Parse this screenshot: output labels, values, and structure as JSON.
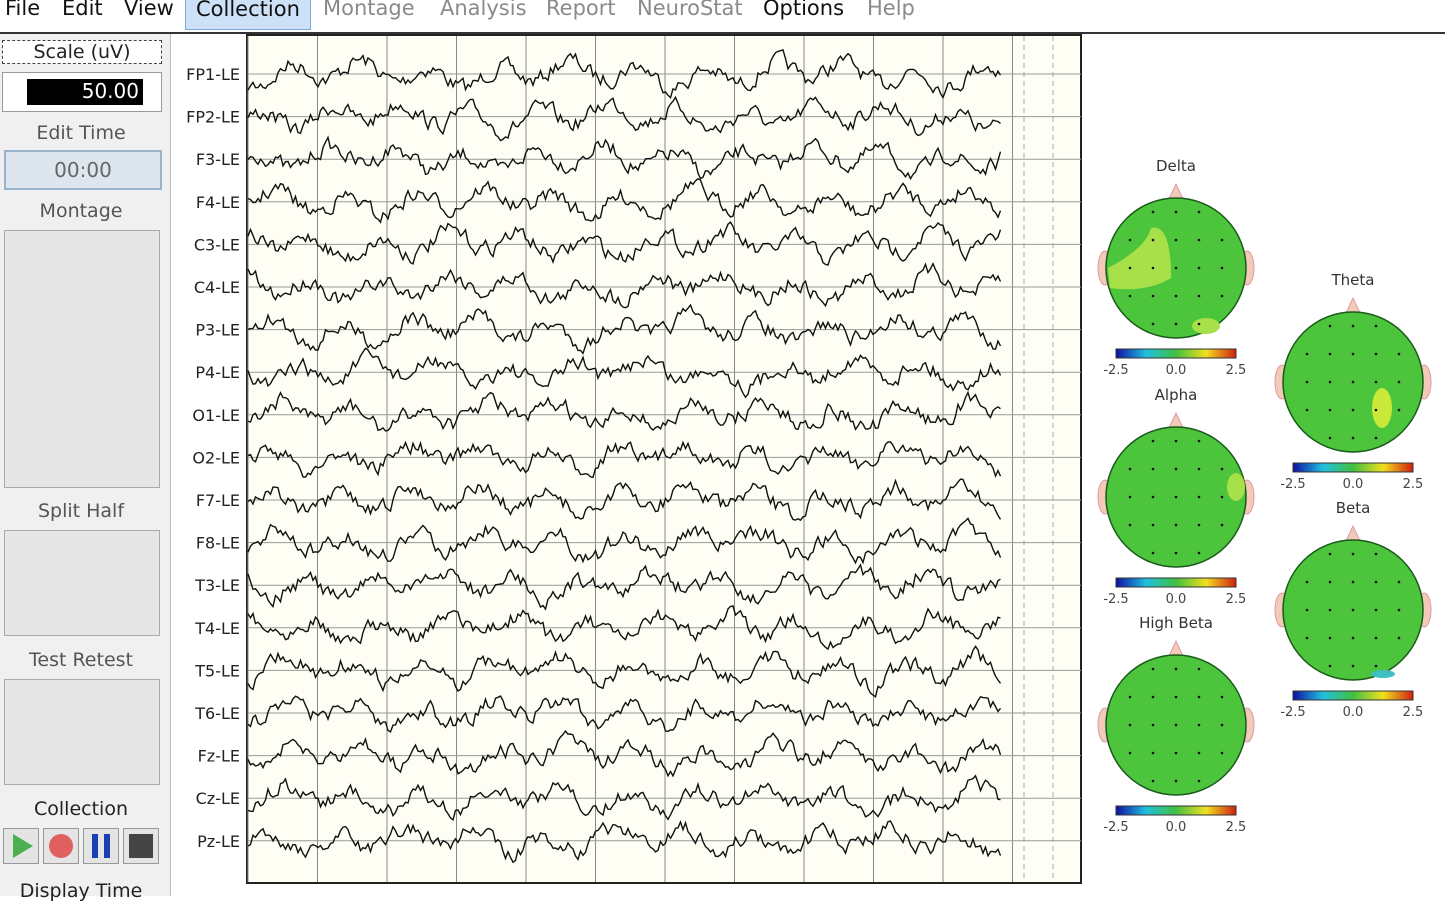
{
  "menu": [
    "File",
    "Edit",
    "View",
    "Collection",
    "Montage",
    "Analysis",
    "Report",
    "NeuroStat",
    "Options",
    "Help"
  ],
  "sidebar": {
    "scale_label": "Scale (uV)",
    "scale_value": "50.00",
    "edit_time_label": "Edit Time",
    "edit_time_value": "00:00",
    "montage_label": "Montage",
    "split_half_label": "Split Half",
    "test_retest_label": "Test Retest",
    "collection_label": "Collection",
    "display_time_label": "Display Time"
  },
  "eeg": {
    "channels": [
      "FP1-LE",
      "FP2-LE",
      "F3-LE",
      "F4-LE",
      "C3-LE",
      "C4-LE",
      "P3-LE",
      "P4-LE",
      "O1-LE",
      "O2-LE",
      "F7-LE",
      "F8-LE",
      "T3-LE",
      "T4-LE",
      "T5-LE",
      "T6-LE",
      "Fz-LE",
      "Cz-LE",
      "Pz-LE"
    ]
  },
  "maps": [
    {
      "title": "Delta",
      "scale": [
        "-2.5",
        "0.0",
        "2.5"
      ]
    },
    {
      "title": "Theta",
      "scale": [
        "-2.5",
        "0.0",
        "2.5"
      ]
    },
    {
      "title": "Alpha",
      "scale": [
        "-2.5",
        "0.0",
        "2.5"
      ]
    },
    {
      "title": "Beta",
      "scale": [
        "-2.5",
        "0.0",
        "2.5"
      ]
    },
    {
      "title": "High Beta",
      "scale": [
        "-2.5",
        "0.0",
        "2.5"
      ]
    }
  ]
}
